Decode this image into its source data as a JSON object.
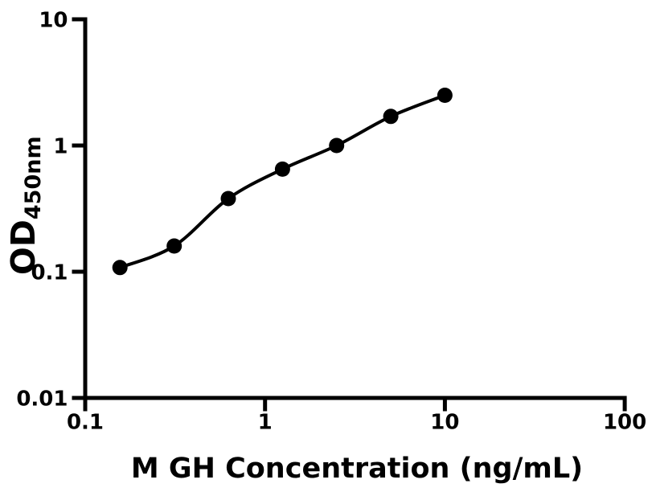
{
  "chart_data": {
    "type": "scatter",
    "title": "",
    "xlabel": "M GH Concentration (ng/mL)",
    "ylabel_main": "OD",
    "ylabel_sub": "450nm",
    "x_scale": "log",
    "y_scale": "log",
    "xlim": [
      0.1,
      100
    ],
    "ylim": [
      0.01,
      10
    ],
    "x_ticks": [
      0.1,
      1,
      10,
      100
    ],
    "x_tick_labels": [
      "0.1",
      "1",
      "10",
      "100"
    ],
    "y_ticks": [
      0.01,
      0.1,
      1,
      10
    ],
    "y_tick_labels": [
      "0.01",
      "0.1",
      "1",
      "10"
    ],
    "grid": false,
    "legend_position": "none",
    "axis_color": "#000000",
    "marker_color": "#000000",
    "line_color": "#000000",
    "background_color": "#ffffff",
    "points": [
      {
        "x": 0.156,
        "y": 0.108
      },
      {
        "x": 0.3125,
        "y": 0.16
      },
      {
        "x": 0.625,
        "y": 0.38
      },
      {
        "x": 1.25,
        "y": 0.65
      },
      {
        "x": 2.5,
        "y": 1.0
      },
      {
        "x": 5,
        "y": 1.7
      },
      {
        "x": 10,
        "y": 2.5
      }
    ]
  }
}
